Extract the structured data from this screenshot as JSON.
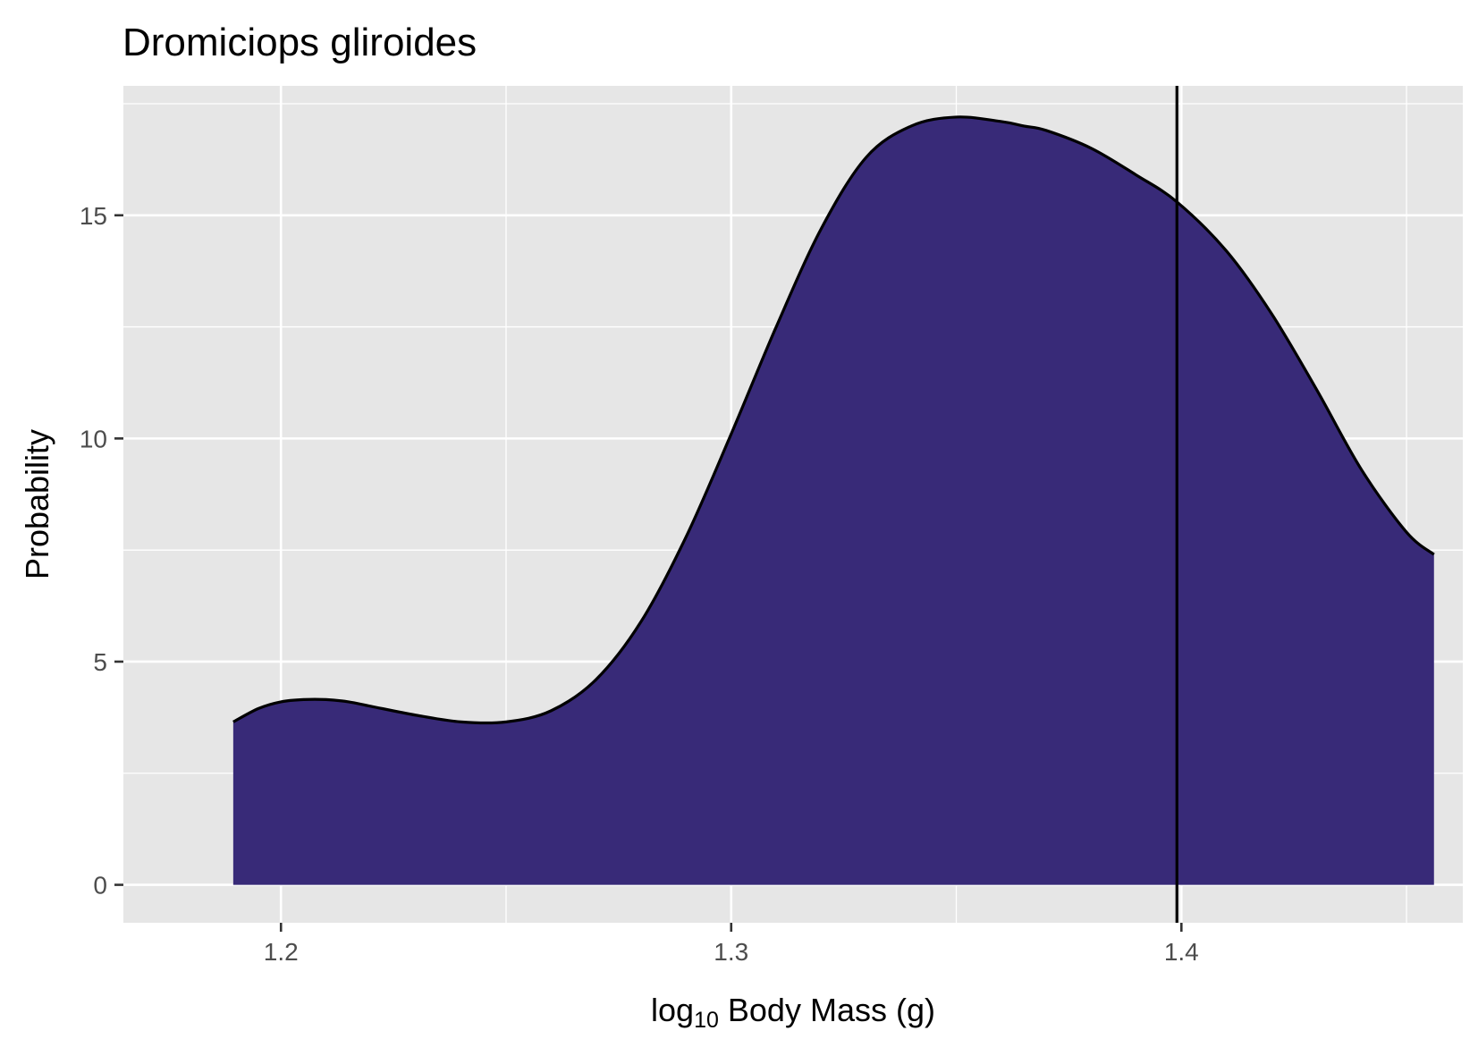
{
  "chart_data": {
    "type": "area",
    "title": "Dromiciops gliroides",
    "xlabel": {
      "prefix": "log",
      "subscript": "10",
      "suffix": " Body Mass (g)"
    },
    "ylabel": "Probability",
    "xlim": [
      1.165,
      1.4625
    ],
    "ylim": [
      -0.85,
      17.9
    ],
    "x_ticks": [
      1.2,
      1.3,
      1.4
    ],
    "x_tick_labels": [
      "1.2",
      "1.3",
      "1.4"
    ],
    "y_ticks": [
      0,
      5,
      10,
      15
    ],
    "y_tick_labels": [
      "0",
      "5",
      "10",
      "15"
    ],
    "grid": true,
    "legend": "none",
    "series": [
      {
        "fill": "#382a78",
        "line_color": "#000000",
        "x": [
          1.1894,
          1.195,
          1.2,
          1.205,
          1.21,
          1.215,
          1.22,
          1.23,
          1.24,
          1.25,
          1.26,
          1.27,
          1.28,
          1.29,
          1.3,
          1.31,
          1.32,
          1.33,
          1.34,
          1.35,
          1.36,
          1.365,
          1.37,
          1.38,
          1.39,
          1.399,
          1.41,
          1.42,
          1.43,
          1.44,
          1.45,
          1.4561
        ],
        "y": [
          3.65,
          3.95,
          4.1,
          4.15,
          4.15,
          4.1,
          4.0,
          3.8,
          3.65,
          3.65,
          3.9,
          4.6,
          5.9,
          7.8,
          10.1,
          12.5,
          14.7,
          16.3,
          17.0,
          17.2,
          17.1,
          17.0,
          16.9,
          16.5,
          15.9,
          15.3,
          14.2,
          12.8,
          11.1,
          9.3,
          7.9,
          7.4
        ]
      }
    ],
    "reference_line": {
      "x": 1.399,
      "color": "#000000"
    }
  }
}
